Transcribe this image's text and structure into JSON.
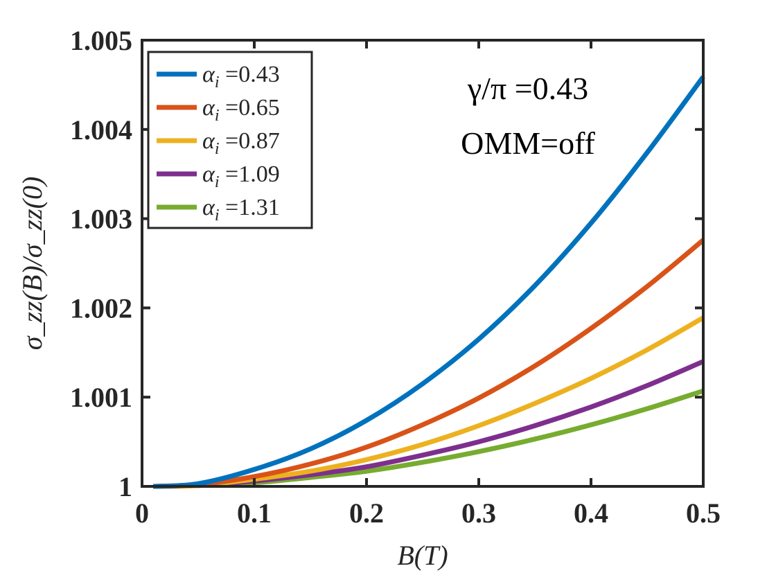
{
  "chart_data": {
    "type": "line",
    "title": "",
    "xlabel": "B(T)",
    "ylabel": "σ_zz(B)/σ_zz(0)",
    "xlim": [
      0,
      0.5
    ],
    "ylim": [
      1,
      1.005
    ],
    "x_ticks": [
      0,
      0.1,
      0.2,
      0.3,
      0.4,
      0.5
    ],
    "x_tick_labels": [
      "0",
      "0.1",
      "0.2",
      "0.3",
      "0.4",
      "0.5"
    ],
    "y_ticks": [
      1,
      1.001,
      1.002,
      1.003,
      1.004,
      1.005
    ],
    "y_tick_labels": [
      "1",
      "1.001",
      "1.002",
      "1.003",
      "1.004",
      "1.005"
    ],
    "grid": false,
    "legend_position": "top-left",
    "annotations": [
      "γ/π =0.43",
      "OMM=off"
    ],
    "x": [
      0.01,
      0.05,
      0.1,
      0.15,
      0.2,
      0.25,
      0.3,
      0.35,
      0.4,
      0.45,
      0.5
    ],
    "series": [
      {
        "name": "α_i =0.43",
        "legend_symbol": "α",
        "legend_sub": "i",
        "legend_value": " =0.43",
        "color": "#0072BD",
        "values": [
          1.0,
          1.00003,
          1.00019,
          1.00042,
          1.00074,
          1.00115,
          1.00165,
          1.00225,
          1.00295,
          1.00374,
          1.00459
        ]
      },
      {
        "name": "α_i =0.65",
        "legend_symbol": "α",
        "legend_sub": "i",
        "legend_value": " =0.65",
        "color": "#D95319",
        "values": [
          1.0,
          1.00002,
          1.00011,
          1.00025,
          1.00044,
          1.00069,
          1.00099,
          1.00135,
          1.00177,
          1.00224,
          1.00276
        ]
      },
      {
        "name": "α_i =0.87",
        "legend_symbol": "α",
        "legend_sub": "i",
        "legend_value": " =0.87",
        "color": "#EDB120",
        "values": [
          1.0,
          1.00001,
          1.00008,
          1.00017,
          1.0003,
          1.00047,
          1.00068,
          1.00093,
          1.00121,
          1.00153,
          1.00189
        ]
      },
      {
        "name": "α_i =1.09",
        "legend_symbol": "α",
        "legend_sub": "i",
        "legend_value": " =1.09",
        "color": "#7E2F8E",
        "values": [
          1.0,
          1.00001,
          1.00006,
          1.00013,
          1.00022,
          1.00035,
          1.0005,
          1.00068,
          1.00089,
          1.00113,
          1.0014
        ]
      },
      {
        "name": "α_i =1.31",
        "legend_symbol": "α",
        "legend_sub": "i",
        "legend_value": " =1.31",
        "color": "#77AC30",
        "values": [
          1.0,
          1.00001,
          1.00004,
          1.0001,
          1.00017,
          1.00027,
          1.00039,
          1.00053,
          1.00069,
          1.00087,
          1.00107
        ]
      }
    ],
    "reference_line": {
      "style": "dashed",
      "color": "#000000",
      "x": [
        0.01,
        0.5
      ],
      "values": [
        1.0,
        1.0
      ]
    }
  }
}
